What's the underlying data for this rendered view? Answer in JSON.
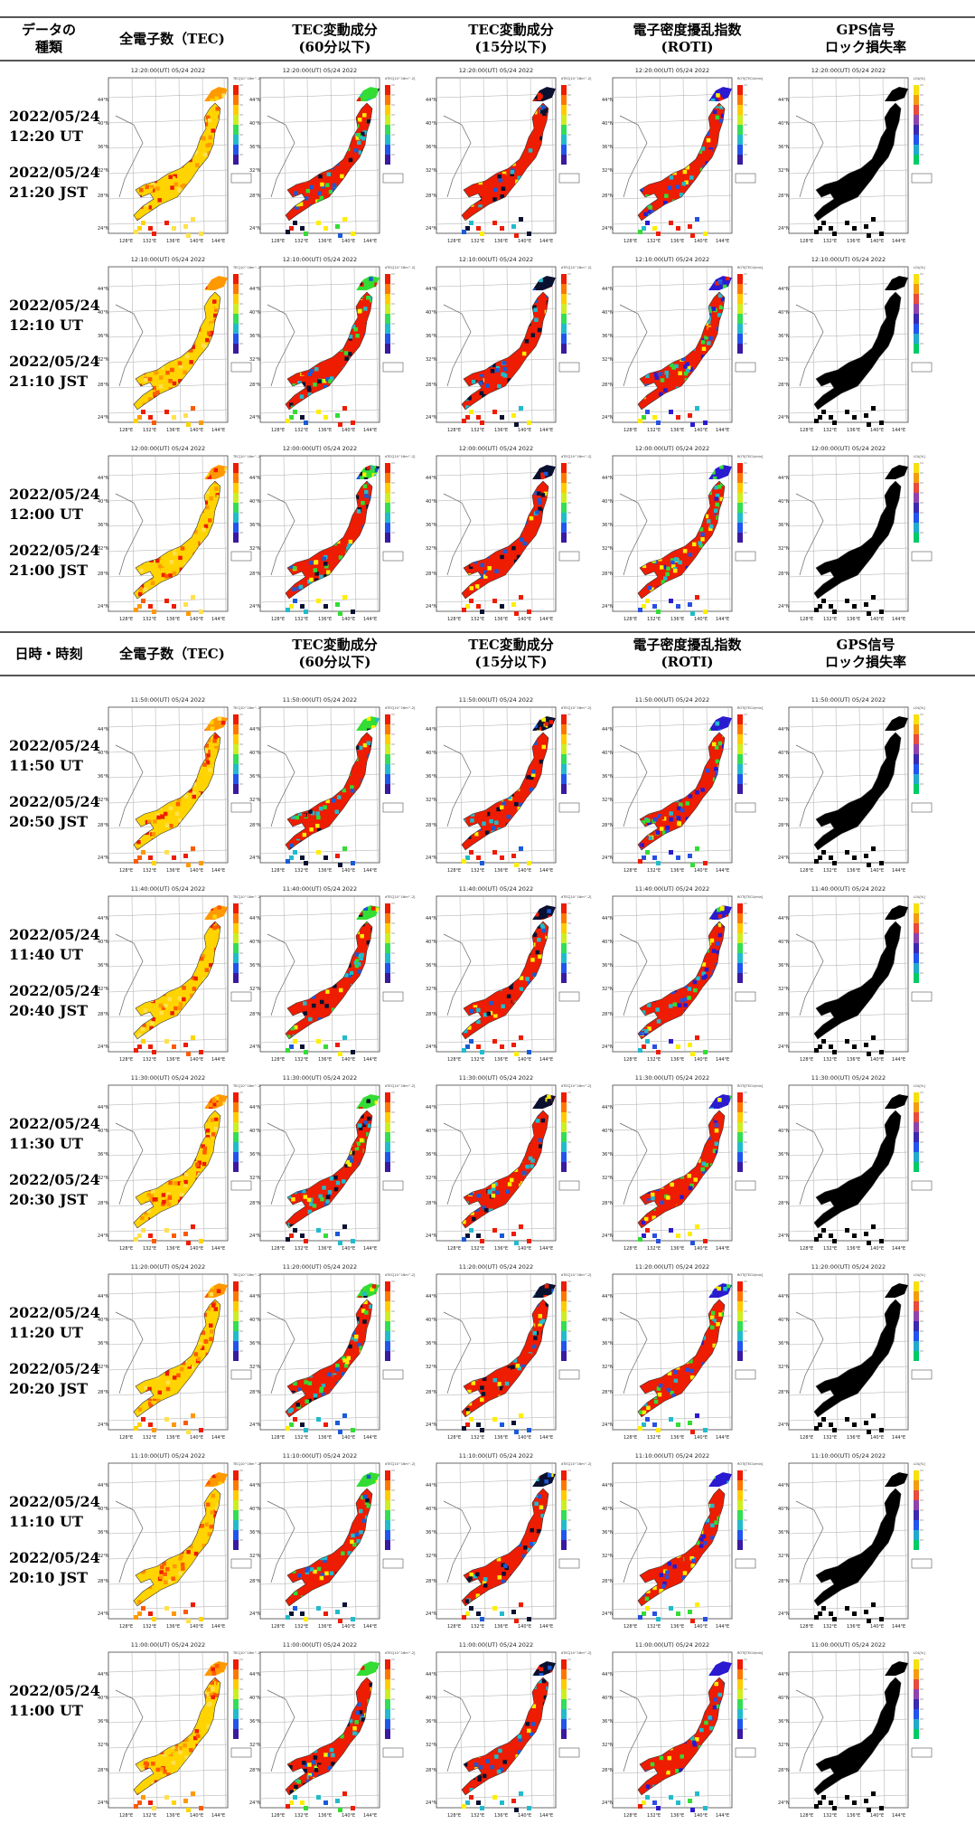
{
  "headers": [
    {
      "row_label": [
        "データの",
        "種類"
      ],
      "columns": [
        [
          "全電子数（TEC)"
        ],
        [
          "TEC変動成分",
          "(60分以下)"
        ],
        [
          "TEC変動成分",
          "(15分以下)"
        ],
        [
          "電子密度擾乱指数",
          "(ROTI)"
        ],
        [
          "GPS信号",
          "ロック損失率"
        ]
      ]
    },
    {
      "row_label": [
        "日時・時刻"
      ],
      "columns": [
        [
          "全電子数（TEC)"
        ],
        [
          "TEC変動成分",
          "(60分以下)"
        ],
        [
          "TEC変動成分",
          "(15分以下)"
        ],
        [
          "電子密度擾乱指数",
          "(ROTI)"
        ],
        [
          "GPS信号",
          "ロック損失率"
        ]
      ]
    }
  ],
  "rows": [
    {
      "date_ut": "2022/05/24",
      "time_ut": "12:20 UT",
      "date_jst": "2022/05/24",
      "time_jst": "21:20 JST",
      "map_title": "12:20:00(UT) 05/24 2022"
    },
    {
      "date_ut": "2022/05/24",
      "time_ut": "12:10 UT",
      "date_jst": "2022/05/24",
      "time_jst": "21:10 JST",
      "map_title": "12:10:00(UT) 05/24 2022"
    },
    {
      "date_ut": "2022/05/24",
      "time_ut": "12:00 UT",
      "date_jst": "2022/05/24",
      "time_jst": "21:00 JST",
      "map_title": "12:00:00(UT) 05/24 2022"
    },
    {
      "date_ut": "2022/05/24",
      "time_ut": "11:50 UT",
      "date_jst": "2022/05/24",
      "time_jst": "20:50 JST",
      "map_title": "11:50:00(UT) 05/24 2022"
    },
    {
      "date_ut": "2022/05/24",
      "time_ut": "11:40 UT",
      "date_jst": "2022/05/24",
      "time_jst": "20:40 JST",
      "map_title": "11:40:00(UT) 05/24 2022"
    },
    {
      "date_ut": "2022/05/24",
      "time_ut": "11:30 UT",
      "date_jst": "2022/05/24",
      "time_jst": "20:30 JST",
      "map_title": "11:30:00(UT) 05/24 2022"
    },
    {
      "date_ut": "2022/05/24",
      "time_ut": "11:20 UT",
      "date_jst": "2022/05/24",
      "time_jst": "20:20 JST",
      "map_title": "11:20:00(UT) 05/24 2022"
    },
    {
      "date_ut": "2022/05/24",
      "time_ut": "11:10 UT",
      "date_jst": "2022/05/24",
      "time_jst": "20:10 JST",
      "map_title": "11:10:00(UT) 05/24 2022"
    },
    {
      "date_ut": "2022/05/24",
      "time_ut": "11:00 UT",
      "date_jst": "",
      "time_jst": "",
      "map_title": "11:00:00(UT) 05/24 2022"
    }
  ],
  "map": {
    "lat_labels": [
      "44°N",
      "40°N",
      "36°N",
      "32°N",
      "28°N",
      "24°N"
    ],
    "lon_labels": [
      "128°E",
      "132°E",
      "136°E",
      "140°E",
      "144°E"
    ],
    "unit_labels": [
      "TEC[10^16m^-2]",
      "dTEC[10^16m^-2]",
      "dTEC[10^16m^-2]",
      "ROTI[TECU/min]",
      "LOL[%]"
    ]
  },
  "panels": [
    {
      "name": "tec",
      "palette": [
        "#ffd400",
        "#ff9900",
        "#ff5a00",
        "#ee1c00",
        "#ffe14d"
      ]
    },
    {
      "name": "dtec60",
      "palette": [
        "#ee1c00",
        "#33dd33",
        "#0a1030",
        "#ffee00",
        "#22bbcc",
        "#1a5ad8"
      ]
    },
    {
      "name": "dtec15",
      "palette": [
        "#ee1c00",
        "#0a1030",
        "#ee1c00",
        "#ffee00",
        "#22bbcc",
        "#1a5ad8"
      ]
    },
    {
      "name": "roti",
      "palette": [
        "#ee1c00",
        "#2a1ad0",
        "#22bbcc",
        "#33dd33",
        "#ffee00",
        "#2850e0"
      ]
    },
    {
      "name": "lol",
      "palette": [
        "#000000"
      ]
    }
  ]
}
